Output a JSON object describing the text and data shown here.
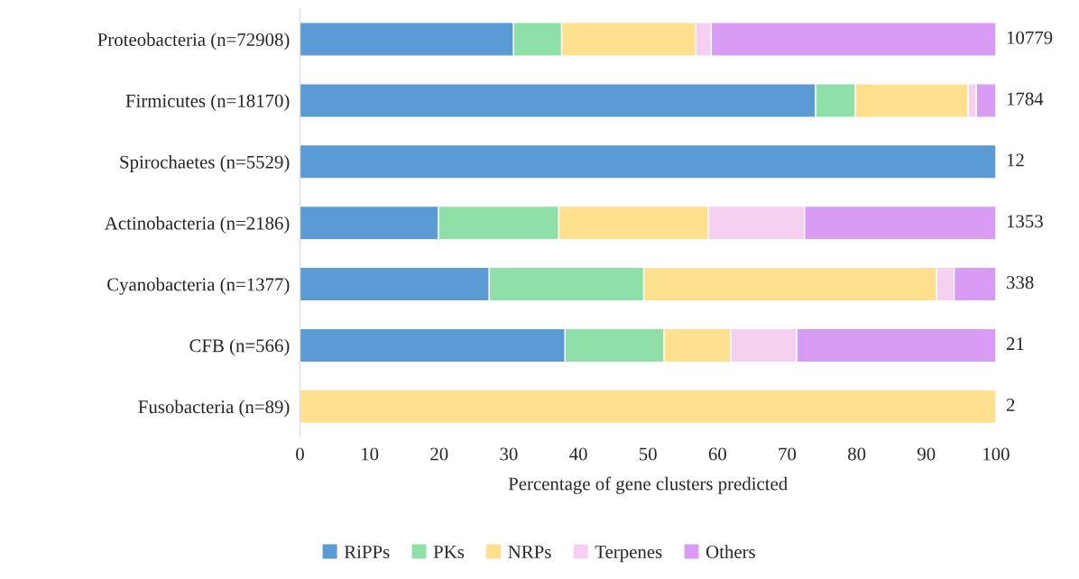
{
  "chart_data": {
    "type": "bar",
    "orientation": "horizontal",
    "stacked": true,
    "xlabel": "Percentage of gene clusters predicted",
    "categories": [
      "Proteobacteria (n=72908)",
      "Firmicutes (n=18170)",
      "Spirochaetes (n=5529)",
      "Actinobacteria (n=2186)",
      "Cyanobacteria (n=1377)",
      "CFB (n=566)",
      "Fusobacteria (n=89)"
    ],
    "series": [
      {
        "name": "RiPPs",
        "color": "#5b9bd5",
        "values": [
          30.7,
          74.1,
          100,
          19.9,
          27.2,
          38.1,
          null
        ]
      },
      {
        "name": "PKs",
        "color": "#8ee0a8",
        "values": [
          6.9,
          5.7,
          null,
          17.3,
          22.2,
          14.2,
          null
        ]
      },
      {
        "name": "NRPs",
        "color": "#ffe08f",
        "values": [
          19.3,
          16.2,
          null,
          21.5,
          42.1,
          9.6,
          100
        ]
      },
      {
        "name": "Terpenes",
        "color": "#f5d0f0",
        "values": [
          2.2,
          1.2,
          null,
          13.8,
          2.5,
          9.5,
          null
        ]
      },
      {
        "name": "Others",
        "color": "#d89cf5",
        "values": [
          40.9,
          2.8,
          null,
          27.5,
          6.0,
          28.6,
          null
        ]
      }
    ],
    "xlim": [
      0,
      100
    ],
    "xticks": [
      0,
      10,
      20,
      30,
      40,
      50,
      60,
      70,
      80,
      90,
      100
    ],
    "annotations": [
      "10779",
      "1784",
      "12",
      "1353",
      "338",
      "21",
      "2"
    ],
    "grid": false,
    "legend": "bottom"
  }
}
